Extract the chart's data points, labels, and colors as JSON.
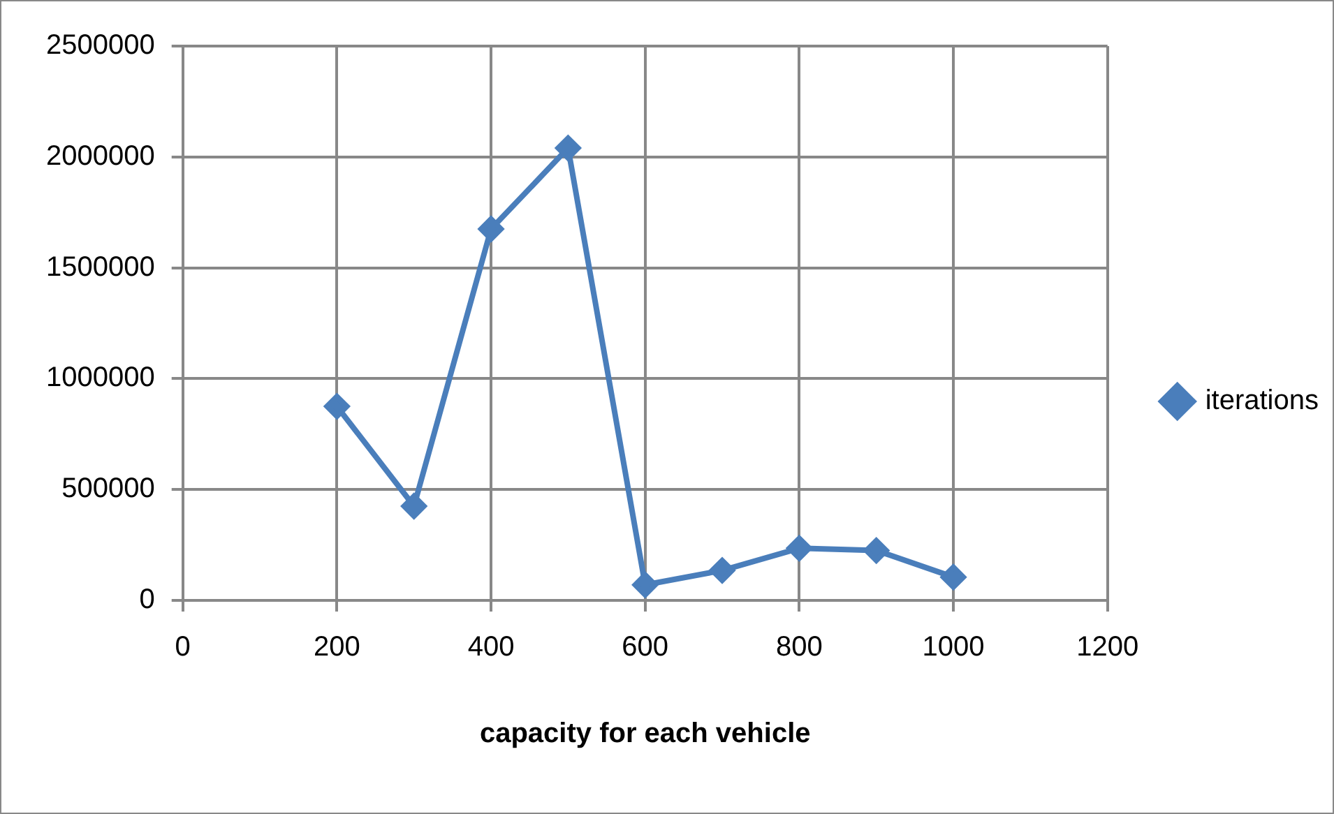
{
  "chart_data": {
    "type": "line",
    "xlabel": "capacity for each vehicle",
    "x": [
      200,
      300,
      400,
      500,
      600,
      700,
      800,
      900,
      1000
    ],
    "series": [
      {
        "name": "iterations",
        "color": "#4a7ebb",
        "values": [
          875000,
          425000,
          1675000,
          2040000,
          70000,
          135000,
          235000,
          225000,
          105000
        ]
      }
    ],
    "xlim": [
      0,
      1200
    ],
    "xticks": [
      0,
      200,
      400,
      600,
      800,
      1000,
      1200
    ],
    "ylim": [
      0,
      2500000
    ],
    "yticks": [
      0,
      500000,
      1000000,
      1500000,
      2000000,
      2500000
    ],
    "grid": true,
    "legend": "right",
    "marker": "diamond",
    "line_style": "solid"
  }
}
